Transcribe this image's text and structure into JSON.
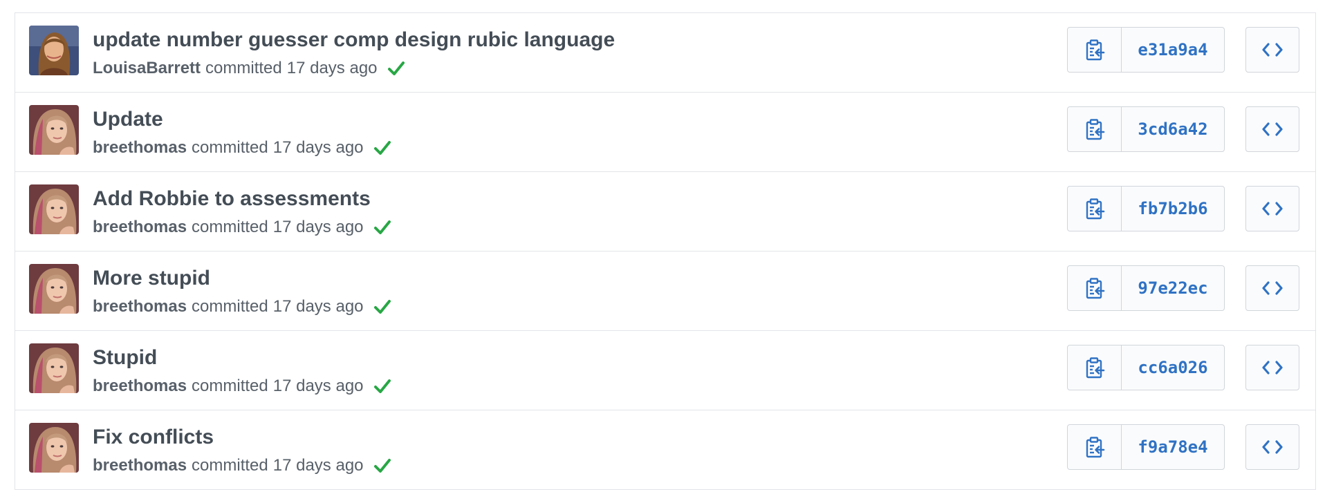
{
  "colors": {
    "link_blue": "#2f72c4",
    "success_green": "#28a745",
    "text_muted": "#586069",
    "border": "#d1d5da"
  },
  "icons": {
    "copy": "clipboard-icon",
    "browse": "code-icon",
    "status": "check-icon"
  },
  "commits": [
    {
      "title": "update number guesser comp design rubic language",
      "author": "LouisaBarrett",
      "action": "committed",
      "when": "17 days ago",
      "sha": "e31a9a4",
      "avatar": "louisa"
    },
    {
      "title": "Update",
      "author": "breethomas",
      "action": "committed",
      "when": "17 days ago",
      "sha": "3cd6a42",
      "avatar": "bree"
    },
    {
      "title": "Add Robbie to assessments",
      "author": "breethomas",
      "action": "committed",
      "when": "17 days ago",
      "sha": "fb7b2b6",
      "avatar": "bree"
    },
    {
      "title": "More stupid",
      "author": "breethomas",
      "action": "committed",
      "when": "17 days ago",
      "sha": "97e22ec",
      "avatar": "bree"
    },
    {
      "title": "Stupid",
      "author": "breethomas",
      "action": "committed",
      "when": "17 days ago",
      "sha": "cc6a026",
      "avatar": "bree"
    },
    {
      "title": "Fix conflicts",
      "author": "breethomas",
      "action": "committed",
      "when": "17 days ago",
      "sha": "f9a78e4",
      "avatar": "bree"
    }
  ]
}
